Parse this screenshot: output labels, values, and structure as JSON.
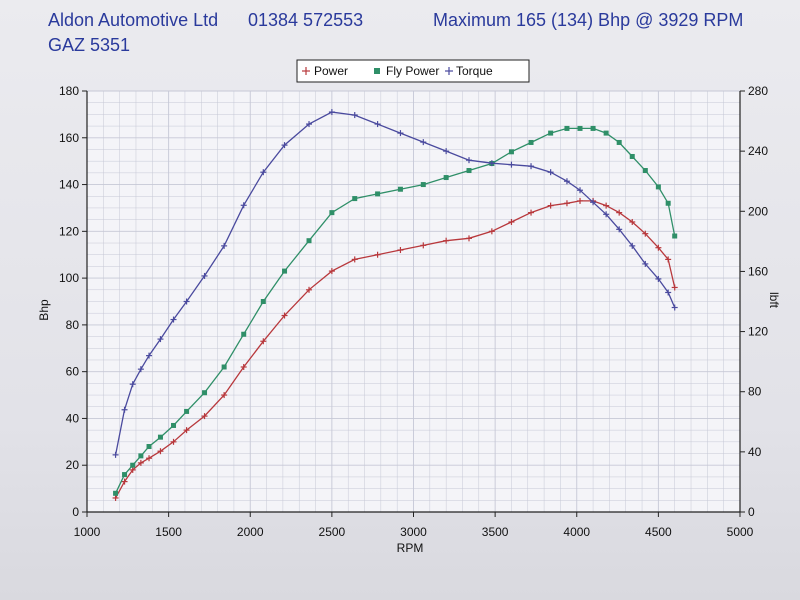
{
  "header": {
    "company": "Aldon Automotive Ltd",
    "phone": "01384 572553",
    "max_power": "Maximum 165 (134) Bhp @ 3929 RPM",
    "registration": "GAZ 5351"
  },
  "colors": {
    "header_text": "#2a3a9c",
    "power": "#b8383c",
    "fly_power": "#2f8f68",
    "torque": "#4a4a9e",
    "grid": "#c6c8d6",
    "axis": "#222222"
  },
  "chart_data": {
    "type": "line",
    "xlabel": "RPM",
    "ylabel": "Bhp",
    "y2label": "lbft",
    "xlim": [
      1000,
      5000
    ],
    "ylim": [
      0,
      180
    ],
    "y2lim": [
      0,
      280
    ],
    "xticks": [
      "1000",
      "1500",
      "2000",
      "2500",
      "3000",
      "3500",
      "4000",
      "4500",
      "5000"
    ],
    "yticks": [
      "0",
      "20",
      "40",
      "60",
      "80",
      "100",
      "120",
      "140",
      "160",
      "180"
    ],
    "y2ticks": [
      "0",
      "40",
      "80",
      "120",
      "160",
      "200",
      "240",
      "280"
    ],
    "grid": true,
    "legend_position": "top-center",
    "series": [
      {
        "name": "Power",
        "axis": "left",
        "marker": "+",
        "color": "#b8383c",
        "x": [
          1175,
          1230,
          1280,
          1330,
          1380,
          1450,
          1530,
          1610,
          1720,
          1840,
          1960,
          2080,
          2210,
          2360,
          2500,
          2640,
          2780,
          2920,
          3060,
          3200,
          3340,
          3480,
          3600,
          3720,
          3840,
          3940,
          4020,
          4100,
          4180,
          4260,
          4340,
          4420,
          4500,
          4560,
          4600
        ],
        "y": [
          6,
          13,
          18,
          21,
          23,
          26,
          30,
          35,
          41,
          50,
          62,
          73,
          84,
          95,
          103,
          108,
          110,
          112,
          114,
          116,
          117,
          120,
          124,
          128,
          131,
          132,
          133,
          133,
          131,
          128,
          124,
          119,
          113,
          108,
          96
        ]
      },
      {
        "name": "Fly Power",
        "axis": "left",
        "marker": "square",
        "color": "#2f8f68",
        "x": [
          1175,
          1230,
          1280,
          1330,
          1380,
          1450,
          1530,
          1610,
          1720,
          1840,
          1960,
          2080,
          2210,
          2360,
          2500,
          2640,
          2780,
          2920,
          3060,
          3200,
          3340,
          3480,
          3600,
          3720,
          3840,
          3940,
          4020,
          4100,
          4180,
          4260,
          4340,
          4420,
          4500,
          4560,
          4600
        ],
        "y": [
          8,
          16,
          20,
          24,
          28,
          32,
          37,
          43,
          51,
          62,
          76,
          90,
          103,
          116,
          128,
          134,
          136,
          138,
          140,
          143,
          146,
          149,
          154,
          158,
          162,
          164,
          164,
          164,
          162,
          158,
          152,
          146,
          139,
          132,
          118
        ]
      },
      {
        "name": "Torque",
        "axis": "right",
        "marker": "+",
        "color": "#4a4a9e",
        "x": [
          1175,
          1230,
          1280,
          1330,
          1380,
          1450,
          1530,
          1610,
          1720,
          1840,
          1960,
          2080,
          2210,
          2360,
          2500,
          2640,
          2780,
          2920,
          3060,
          3200,
          3340,
          3480,
          3600,
          3720,
          3840,
          3940,
          4020,
          4100,
          4180,
          4260,
          4340,
          4420,
          4500,
          4560,
          4600
        ],
        "y": [
          38,
          68,
          85,
          95,
          104,
          115,
          128,
          140,
          157,
          177,
          204,
          226,
          244,
          258,
          266,
          264,
          258,
          252,
          246,
          240,
          234,
          232,
          231,
          230,
          226,
          220,
          214,
          206,
          198,
          188,
          177,
          165,
          155,
          146,
          136
        ]
      }
    ]
  }
}
